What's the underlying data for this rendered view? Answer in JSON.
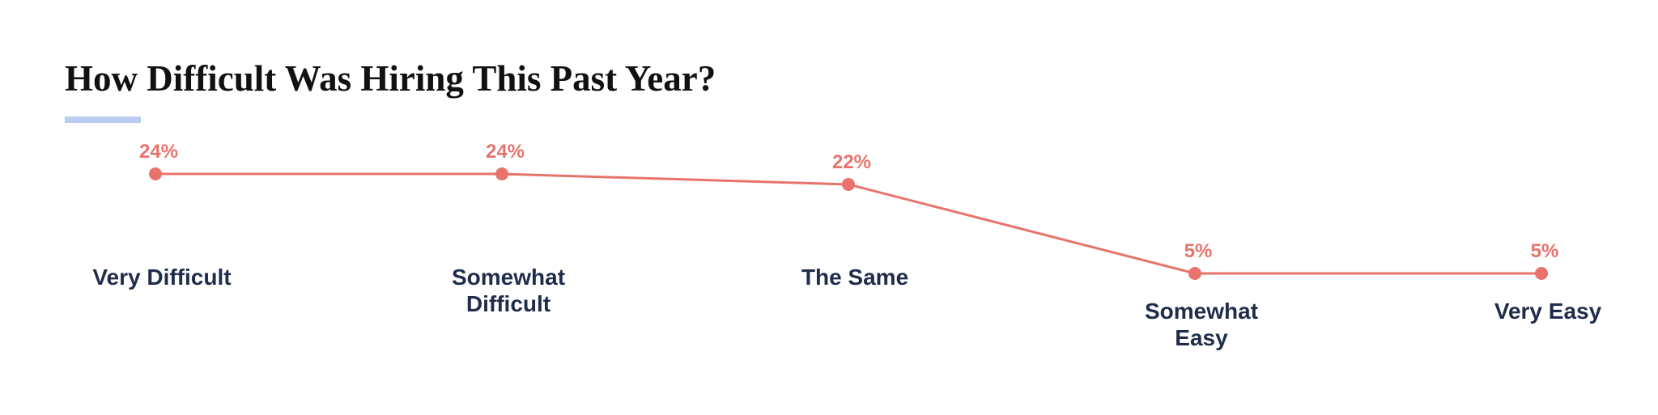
{
  "chart_data": {
    "type": "line",
    "title": "How Difficult Was Hiring This Past Year?",
    "categories": [
      "Very Difficult",
      "Somewhat Difficult",
      "The Same",
      "Somewhat Easy",
      "Very Easy"
    ],
    "values": [
      24,
      24,
      22,
      5,
      5
    ],
    "value_labels": [
      "24%",
      "24%",
      "22%",
      "5%",
      "5%"
    ],
    "color": "#e8736c"
  }
}
